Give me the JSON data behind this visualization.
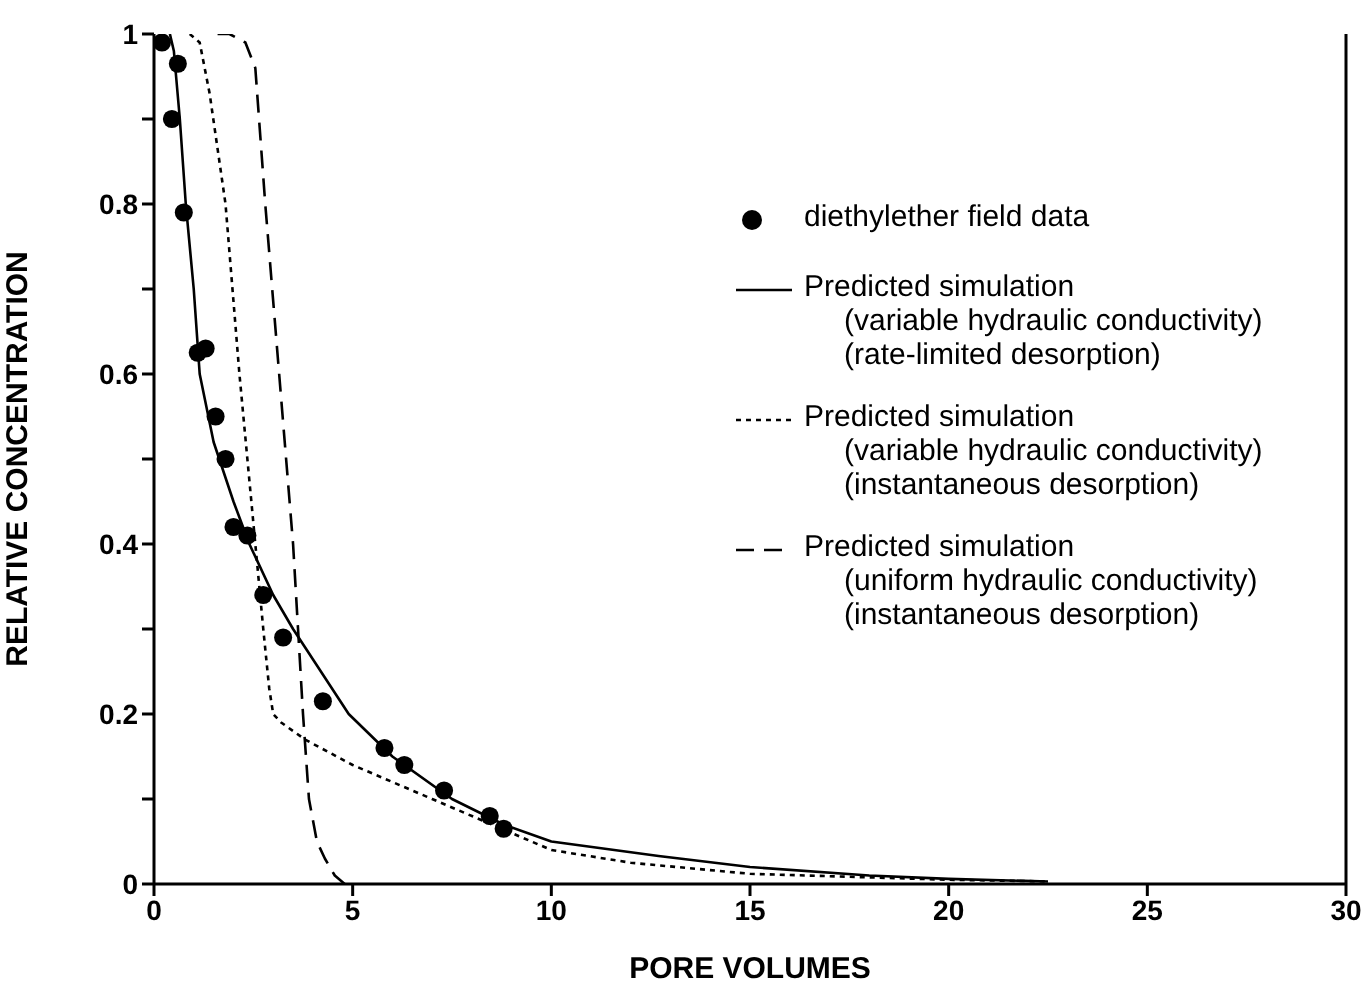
{
  "chart_data": {
    "type": "line",
    "xlabel": "PORE VOLUMES",
    "ylabel": "RELATIVE CONCENTRATION",
    "xlim": [
      0,
      30
    ],
    "xticks": [
      0,
      5,
      10,
      15,
      20,
      25,
      30
    ],
    "ylim": [
      0,
      1
    ],
    "yticks": [
      0,
      {
        "value": 0.1,
        "label": null
      },
      0.2,
      {
        "value": 0.3,
        "label": null
      },
      0.4,
      {
        "value": 0.5,
        "label": null
      },
      0.6,
      {
        "value": 0.7,
        "label": null
      },
      0.8,
      {
        "value": 0.9,
        "label": null
      },
      1
    ],
    "grid": false,
    "legend": "right",
    "series": [
      {
        "name": "diethylether field data",
        "type": "scatter",
        "marker": "circle",
        "color": "#000000",
        "x": [
          0.2,
          0.6,
          0.45,
          0.75,
          1.1,
          1.3,
          1.55,
          1.8,
          2.0,
          2.35,
          2.75,
          3.25,
          4.25,
          5.8,
          6.3,
          7.3,
          8.45,
          8.8
        ],
        "values": [
          0.99,
          0.965,
          0.9,
          0.79,
          0.625,
          0.63,
          0.55,
          0.5,
          0.42,
          0.41,
          0.34,
          0.29,
          0.215,
          0.16,
          0.14,
          0.11,
          0.08,
          0.065
        ]
      },
      {
        "name": "Predicted simulation (variable hydraulic conductivity) (rate-limited desorption)",
        "type": "line",
        "marker": "none",
        "line_style": "solid",
        "color": "#000000",
        "x": [
          0.4,
          0.5,
          0.65,
          0.8,
          1.0,
          1.15,
          1.5,
          2.0,
          2.4,
          3.0,
          3.5,
          4.2,
          4.9,
          6.0,
          7.5,
          8.8,
          10,
          12.7,
          15,
          18,
          20,
          22.5
        ],
        "values": [
          1.0,
          0.98,
          0.9,
          0.8,
          0.7,
          0.6,
          0.52,
          0.45,
          0.4,
          0.34,
          0.3,
          0.25,
          0.2,
          0.15,
          0.1,
          0.07,
          0.05,
          0.033,
          0.02,
          0.01,
          0.006,
          0.003
        ]
      },
      {
        "name": "Predicted simulation (variable hydraulic conductivity) (instantaneous desorption)",
        "type": "line",
        "marker": "none",
        "line_style": "dotted",
        "color": "#000000",
        "x": [
          0.9,
          1.15,
          1.4,
          1.8,
          2.15,
          2.55,
          2.75,
          2.9,
          3.0,
          3.2,
          3.8,
          5.0,
          7.0,
          8.5,
          10,
          12,
          15,
          20,
          22.5
        ],
        "values": [
          1.0,
          0.99,
          0.93,
          0.8,
          0.6,
          0.4,
          0.3,
          0.23,
          0.2,
          0.19,
          0.17,
          0.14,
          0.1,
          0.07,
          0.04,
          0.025,
          0.012,
          0.005,
          0.003
        ]
      },
      {
        "name": "Predicted simulation (uniform hydraulic conductivity) (instantaneous desorption)",
        "type": "line",
        "marker": "none",
        "line_style": "dashed",
        "color": "#000000",
        "x": [
          1.6,
          1.9,
          2.3,
          2.55,
          2.8,
          3.15,
          3.5,
          3.75,
          3.9,
          4.1,
          4.3,
          4.55,
          4.8
        ],
        "values": [
          1.0,
          1.0,
          0.99,
          0.96,
          0.8,
          0.6,
          0.4,
          0.2,
          0.1,
          0.05,
          0.03,
          0.01,
          0.0
        ]
      }
    ]
  }
}
